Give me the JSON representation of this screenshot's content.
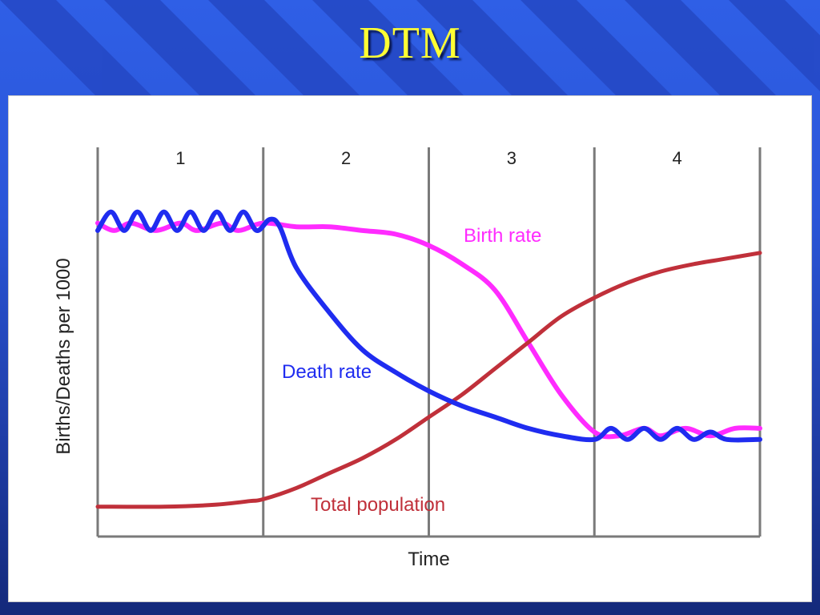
{
  "slide": {
    "title": "DTM"
  },
  "colors": {
    "birth_rate": "#ff2bff",
    "death_rate": "#1f2cf0",
    "total_population": "#c0303a",
    "stage_lines": "#7a7a7a",
    "title": "#ffff33"
  },
  "chart_data": {
    "type": "line",
    "title": "",
    "xlabel": "Time",
    "ylabel": "Births/Deaths per 1000",
    "stages": [
      "1",
      "2",
      "3",
      "4"
    ],
    "xlim": [
      0,
      4
    ],
    "ylim": [
      0,
      100
    ],
    "grid": false,
    "legend": "inline labels",
    "series": [
      {
        "name": "Birth rate",
        "x": [
          0,
          0.1,
          0.2,
          0.35,
          0.5,
          0.6,
          0.75,
          0.85,
          1.0,
          1.2,
          1.4,
          1.6,
          1.8,
          2.0,
          2.2,
          2.4,
          2.6,
          2.8,
          3.0,
          3.15,
          3.3,
          3.4,
          3.55,
          3.7,
          3.85,
          4.0
        ],
        "y": [
          84,
          82,
          84,
          82,
          84,
          82,
          84,
          82,
          84,
          83,
          83,
          82,
          81,
          78,
          73,
          66,
          52,
          38,
          28,
          27,
          29,
          27,
          29,
          27,
          29,
          29
        ]
      },
      {
        "name": "Death rate",
        "x": [
          0,
          0.08,
          0.16,
          0.24,
          0.32,
          0.4,
          0.48,
          0.56,
          0.64,
          0.72,
          0.8,
          0.88,
          0.96,
          1.04,
          1.1,
          1.2,
          1.4,
          1.6,
          1.8,
          2.0,
          2.2,
          2.4,
          2.6,
          2.8,
          3.0,
          3.1,
          3.2,
          3.3,
          3.4,
          3.5,
          3.6,
          3.7,
          3.8,
          4.0
        ],
        "y": [
          82,
          87,
          82,
          87,
          82,
          87,
          82,
          87,
          82,
          87,
          82,
          87,
          82,
          85,
          83,
          72,
          60,
          50,
          44,
          39,
          35,
          32,
          29,
          27,
          26,
          29,
          26,
          29,
          26,
          29,
          26,
          28,
          26,
          26
        ]
      },
      {
        "name": "Total population",
        "x": [
          0,
          0.4,
          0.7,
          0.92,
          1.0,
          1.2,
          1.4,
          1.6,
          1.8,
          2.0,
          2.2,
          2.4,
          2.6,
          2.8,
          3.0,
          3.2,
          3.4,
          3.6,
          3.8,
          4.0
        ],
        "y": [
          8,
          8,
          8.5,
          9.5,
          10,
          13,
          17,
          21,
          26,
          32,
          38,
          45,
          52,
          59,
          64,
          68,
          71,
          73,
          74.5,
          76
        ]
      }
    ]
  }
}
